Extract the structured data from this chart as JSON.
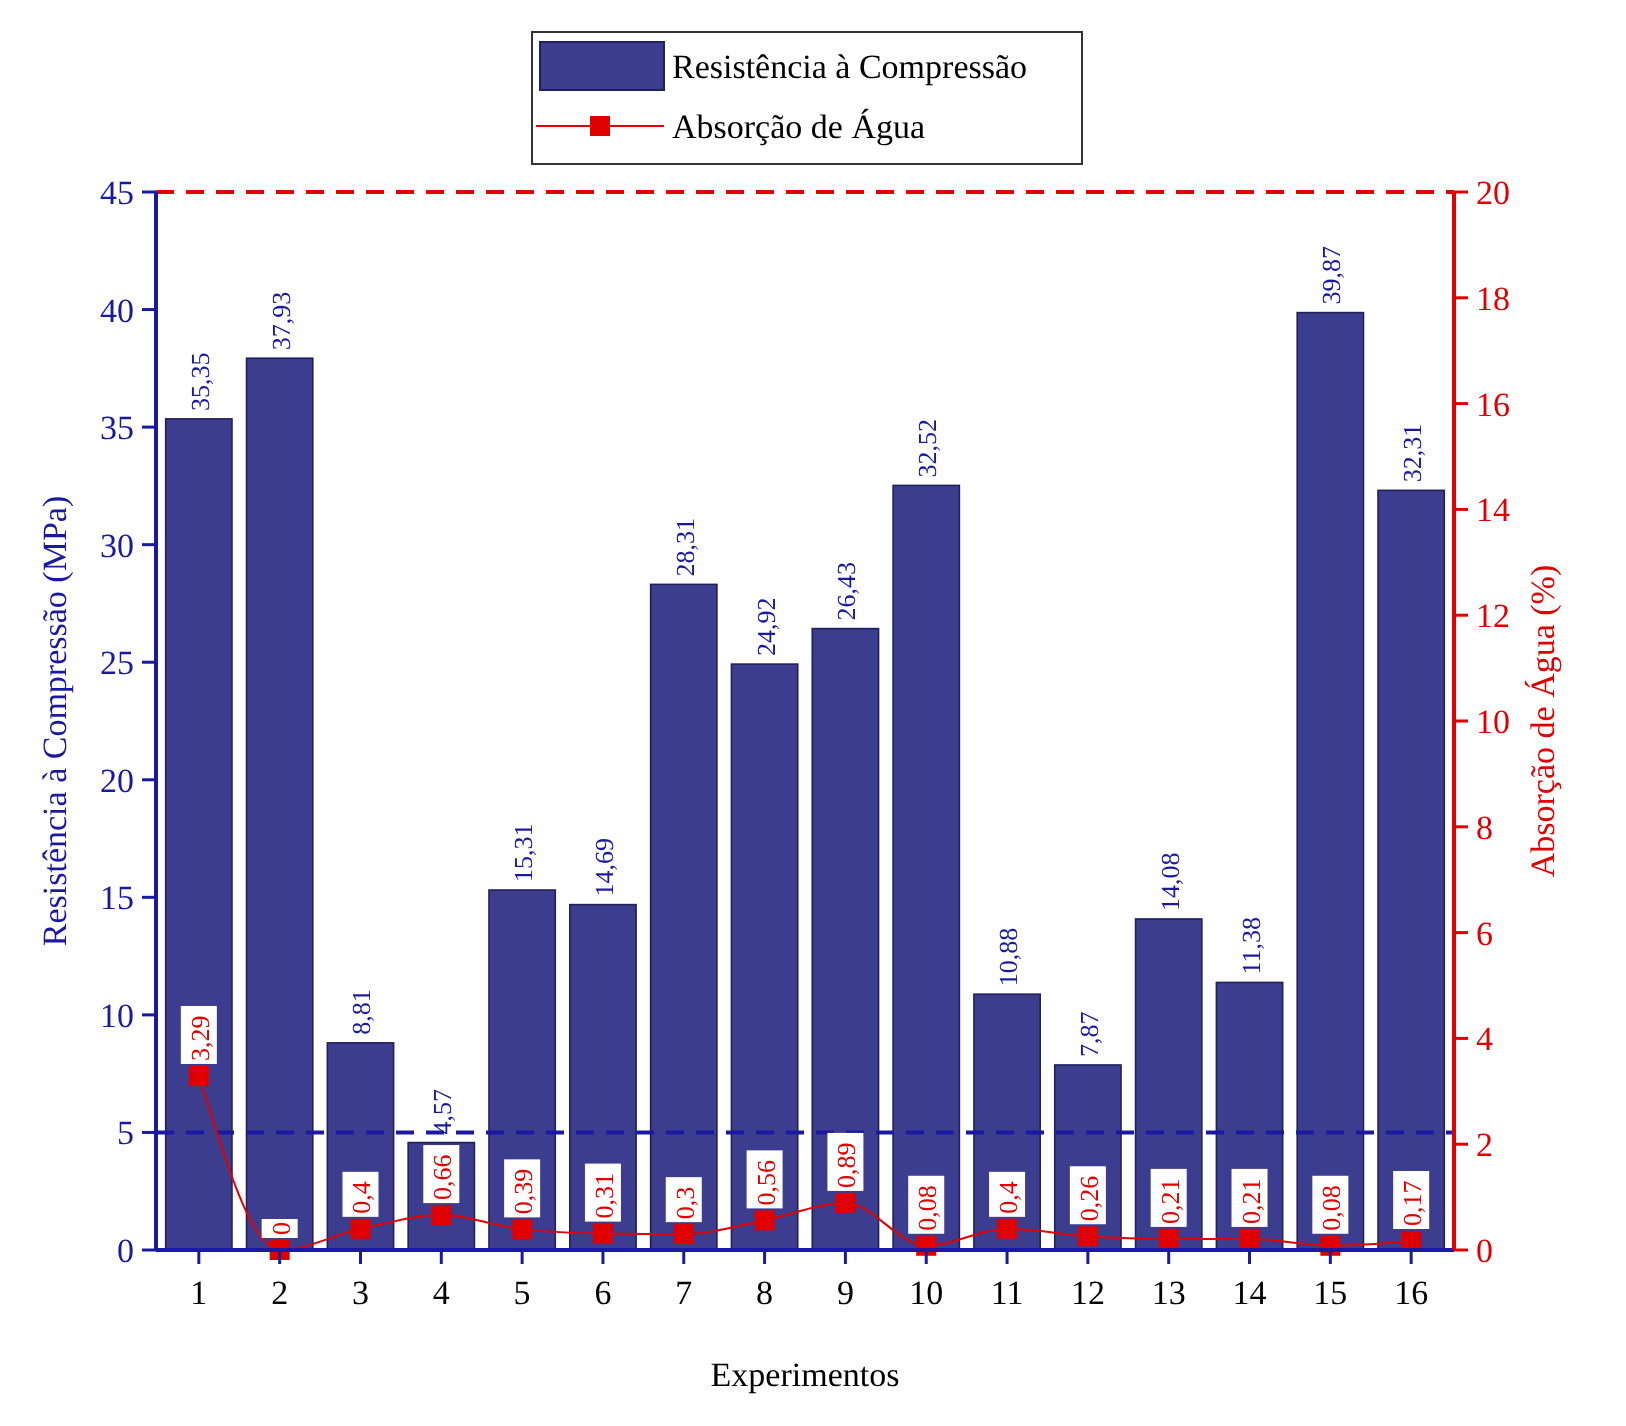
{
  "chart_data": {
    "type": "bar",
    "xlabel": "Experimentos",
    "ylabel": "Resistência à Compressão (MPa)",
    "y2label": "Absorção de Água (%)",
    "categories": [
      "1",
      "2",
      "3",
      "4",
      "5",
      "6",
      "7",
      "8",
      "9",
      "10",
      "11",
      "12",
      "13",
      "14",
      "15",
      "16"
    ],
    "series": [
      {
        "name": "Resistência à Compressão",
        "color": "#3d3d8f",
        "values": [
          35.35,
          37.93,
          8.81,
          4.57,
          15.31,
          14.69,
          28.31,
          24.92,
          26.43,
          32.52,
          10.88,
          7.87,
          14.08,
          11.38,
          39.87,
          32.31
        ],
        "value_labels": [
          "35,35",
          "37,93",
          "8,81",
          "4,57",
          "15,31",
          "14,69",
          "28,31",
          "24,92",
          "26,43",
          "32,52",
          "10,88",
          "7,87",
          "14,08",
          "11,38",
          "39,87",
          "32,31"
        ]
      },
      {
        "name": "Absorção de Água",
        "type": "line",
        "axis": "y2",
        "color": "#e00000",
        "marker": "square",
        "line_style": "solid",
        "values": [
          3.29,
          0,
          0.4,
          0.66,
          0.39,
          0.31,
          0.3,
          0.56,
          0.89,
          0.08,
          0.4,
          0.26,
          0.21,
          0.21,
          0.08,
          0.17
        ],
        "value_labels": [
          "3,29",
          "0",
          "0,4",
          "0,66",
          "0,39",
          "0,31",
          "0,3",
          "0,56",
          "0,89",
          "0,08",
          "0,4",
          "0,26",
          "0,21",
          "0,21",
          "0,08",
          "0,17"
        ]
      }
    ],
    "ylim": [
      0,
      45
    ],
    "yticks": [
      0,
      5,
      10,
      15,
      20,
      25,
      30,
      35,
      40,
      45
    ],
    "y2lim": [
      0,
      20
    ],
    "y2ticks": [
      0,
      2,
      4,
      6,
      8,
      10,
      12,
      14,
      16,
      18,
      20
    ],
    "ref_lines": [
      {
        "axis": "y",
        "value": 5,
        "color": "#1a1aa0",
        "line_style": "dashed"
      },
      {
        "axis": "y2",
        "value": 20,
        "color": "#e00000",
        "line_style": "dashed"
      }
    ],
    "grid": false,
    "legend": "top"
  }
}
